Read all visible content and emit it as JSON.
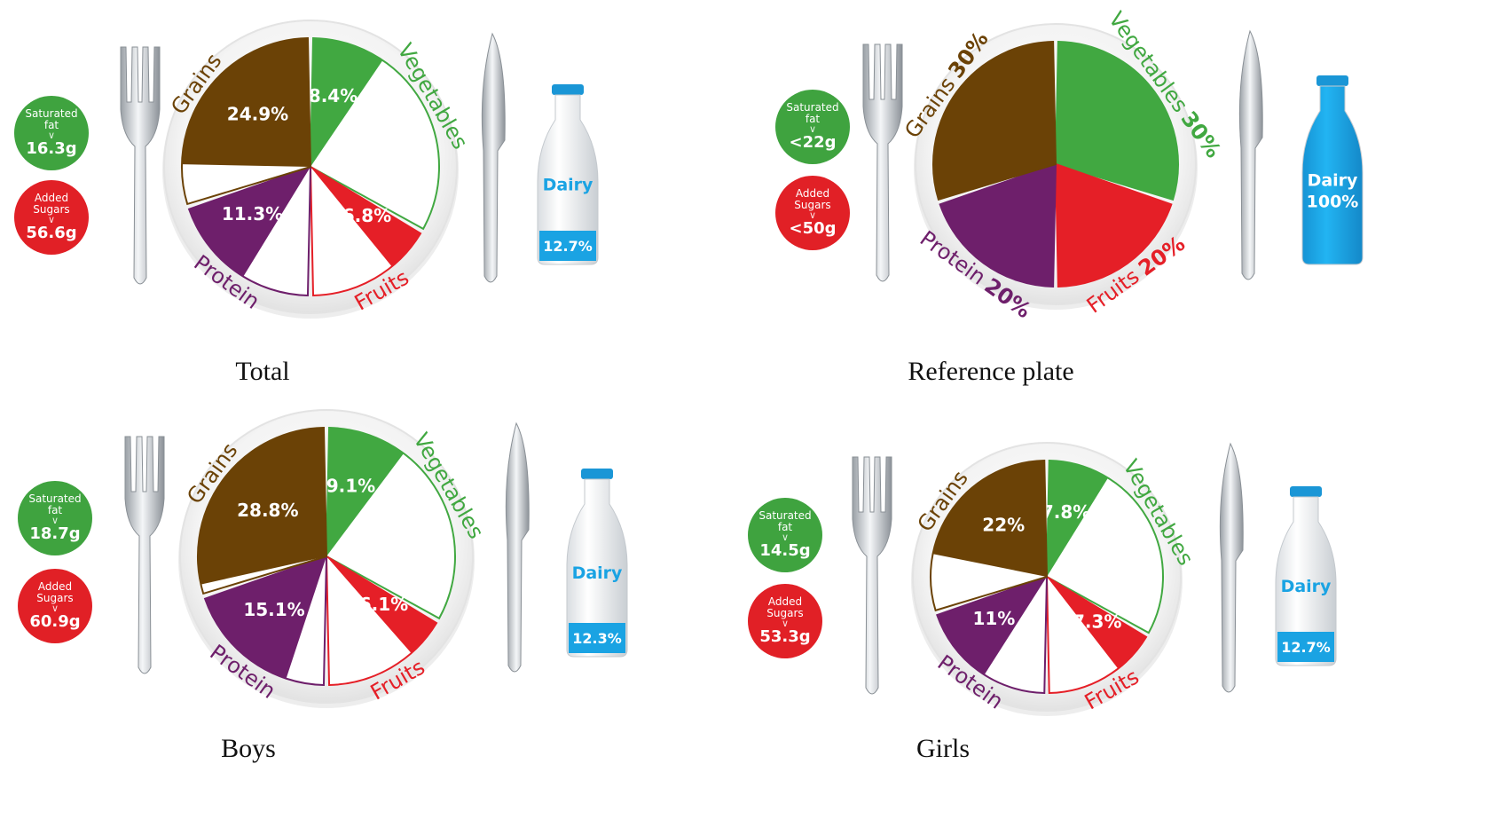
{
  "colors": {
    "grains": "#6b4206",
    "vegetables": "#41a841",
    "fruits": "#e51f27",
    "protein": "#6e1f6b",
    "dairy": "#1aa3e3",
    "sat_fat": "#3fa33f",
    "sugars": "#e12026"
  },
  "chart_data": [
    {
      "type": "pie",
      "name": "Total",
      "caption": "Total",
      "slices": [
        {
          "key": "vegetables",
          "label": "Vegetables",
          "value": 8.4,
          "value_label": "8.4%"
        },
        {
          "key": "fruits",
          "label": "Fruits",
          "value": 6.8,
          "value_label": "6.8%"
        },
        {
          "key": "protein",
          "label": "Protein",
          "value": 11.3,
          "value_label": "11.3%"
        },
        {
          "key": "grains",
          "label": "Grains",
          "value": 24.9,
          "value_label": "24.9%"
        }
      ],
      "dairy": {
        "label": "Dairy",
        "value": 12.7,
        "value_label": "12.7%"
      },
      "saturated_fat": {
        "label": "Saturated fat",
        "value_label": "16.3g"
      },
      "added_sugars": {
        "label": "Added Sugars",
        "value_label": "56.6g"
      }
    },
    {
      "type": "pie",
      "name": "Reference plate",
      "caption": "Reference plate",
      "slices": [
        {
          "key": "vegetables",
          "label": "Vegetables",
          "value": 30,
          "value_label": "30%"
        },
        {
          "key": "fruits",
          "label": "Fruits",
          "value": 20,
          "value_label": "20%"
        },
        {
          "key": "protein",
          "label": "Protein",
          "value": 20,
          "value_label": "20%"
        },
        {
          "key": "grains",
          "label": "Grains",
          "value": 30,
          "value_label": "30%"
        }
      ],
      "dairy": {
        "label": "Dairy",
        "value": 100,
        "value_label": "100%"
      },
      "saturated_fat": {
        "label": "Saturated fat",
        "value_label": "<22g"
      },
      "added_sugars": {
        "label": "Added Sugars",
        "value_label": "<50g"
      }
    },
    {
      "type": "pie",
      "name": "Boys",
      "caption": "Boys",
      "slices": [
        {
          "key": "vegetables",
          "label": "Vegetables",
          "value": 9.1,
          "value_label": "9.1%"
        },
        {
          "key": "fruits",
          "label": "Fruits",
          "value": 6.1,
          "value_label": "6.1%"
        },
        {
          "key": "protein",
          "label": "Protein",
          "value": 15.1,
          "value_label": "15.1%"
        },
        {
          "key": "grains",
          "label": "Grains",
          "value": 28.8,
          "value_label": "28.8%"
        }
      ],
      "dairy": {
        "label": "Dairy",
        "value": 12.3,
        "value_label": "12.3%"
      },
      "saturated_fat": {
        "label": "Saturated fat",
        "value_label": "18.7g"
      },
      "added_sugars": {
        "label": "Added Sugars",
        "value_label": "60.9g"
      }
    },
    {
      "type": "pie",
      "name": "Girls",
      "caption": "Girls",
      "slices": [
        {
          "key": "vegetables",
          "label": "Vegetables",
          "value": 7.8,
          "value_label": "7.8%"
        },
        {
          "key": "fruits",
          "label": "Fruits",
          "value": 7.3,
          "value_label": "7.3%"
        },
        {
          "key": "protein",
          "label": "Protein",
          "value": 11,
          "value_label": "11%"
        },
        {
          "key": "grains",
          "label": "Grains",
          "value": 22,
          "value_label": "22%"
        }
      ],
      "dairy": {
        "label": "Dairy",
        "value": 12.7,
        "value_label": "12.7%"
      },
      "saturated_fat": {
        "label": "Saturated fat",
        "value_label": "14.5g"
      },
      "added_sugars": {
        "label": "Added Sugars",
        "value_label": "53.3g"
      }
    }
  ]
}
